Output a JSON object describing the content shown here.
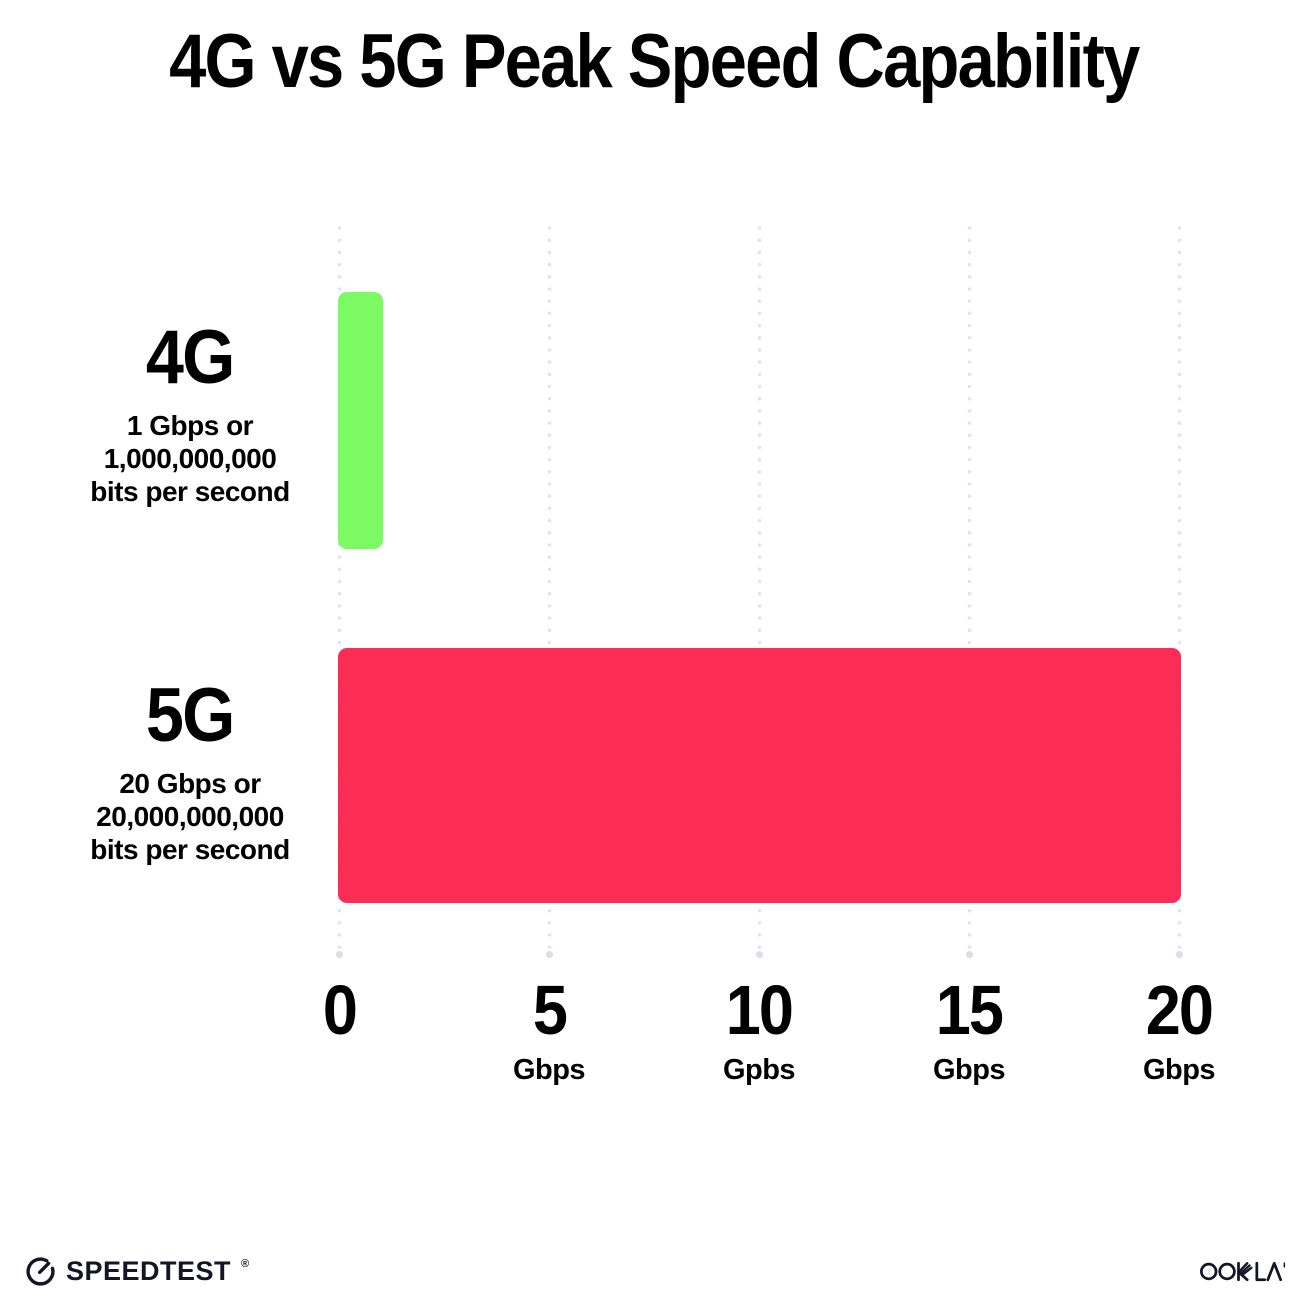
{
  "title": "4G vs 5G Peak Speed Capability",
  "chart_data": {
    "type": "bar",
    "orientation": "horizontal",
    "title": "4G vs 5G Peak Speed Capability",
    "categories": [
      "4G",
      "5G"
    ],
    "values": [
      1,
      20
    ],
    "value_unit": "Gbps",
    "xlabel": "",
    "ylabel": "",
    "xlim": [
      0,
      20
    ],
    "grid": "dotted vertical gridlines at 0, 5, 10, 15, 20",
    "legend": "none",
    "bars": [
      {
        "category": "4G",
        "value_gbps": 1,
        "color": "#7CFA63",
        "sublabel_lines": [
          "1 Gbps or",
          "1,000,000,000",
          "bits per second"
        ]
      },
      {
        "category": "5G",
        "value_gbps": 20,
        "color": "#FC2D55",
        "sublabel_lines": [
          "20 Gbps or",
          "20,000,000,000",
          "bits per second"
        ]
      }
    ],
    "x_axis": {
      "range": [
        0,
        20
      ],
      "ticks": [
        {
          "value": 0,
          "label": "0",
          "unit": ""
        },
        {
          "value": 5,
          "label": "5",
          "unit": "Gbps"
        },
        {
          "value": 10,
          "label": "10",
          "unit": "Gpbs"
        },
        {
          "value": 15,
          "label": "15",
          "unit": "Gbps"
        },
        {
          "value": 20,
          "label": "20",
          "unit": "Gbps"
        }
      ]
    }
  },
  "footer": {
    "speedtest": {
      "label": "SPEEDTEST",
      "trademark": "®",
      "icon": "gauge-icon"
    },
    "ookla": {
      "label": "OOKLA",
      "trademark": "™",
      "icon": "ookla-wordmark"
    }
  },
  "colors": {
    "background": "#FFFFFF",
    "title_text": "#000000",
    "bar_4g_green": "#7CFA63",
    "bar_5g_pink": "#FC2D55",
    "gridline_dots": "#E2E2EF",
    "footer_text": "#141526"
  }
}
